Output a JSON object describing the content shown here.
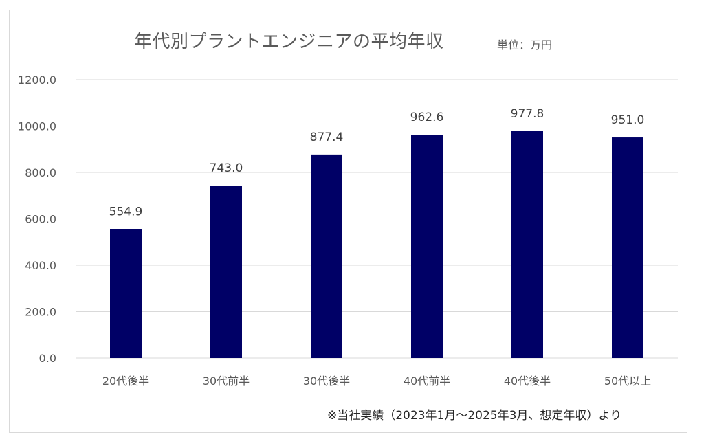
{
  "chart_data": {
    "type": "bar",
    "title": "年代別プラントエンジニアの平均年収",
    "unit_label": "単位：万円",
    "note": "※当社実績（2023年1月～2025年3月、想定年収）より",
    "categories": [
      "20代後半",
      "30代前半",
      "30代後半",
      "40代前半",
      "40代後半",
      "50代以上"
    ],
    "values": [
      554.9,
      743.0,
      877.4,
      962.6,
      977.8,
      951.0
    ],
    "value_labels": [
      "554.9",
      "743.0",
      "877.4",
      "962.6",
      "977.8",
      "951.0"
    ],
    "ylim": [
      0,
      1200
    ],
    "yticks": [
      "0.0",
      "200.0",
      "400.0",
      "600.0",
      "800.0",
      "1000.0",
      "1200.0"
    ],
    "bar_color": "#000066",
    "grid": true,
    "legend": "none"
  }
}
